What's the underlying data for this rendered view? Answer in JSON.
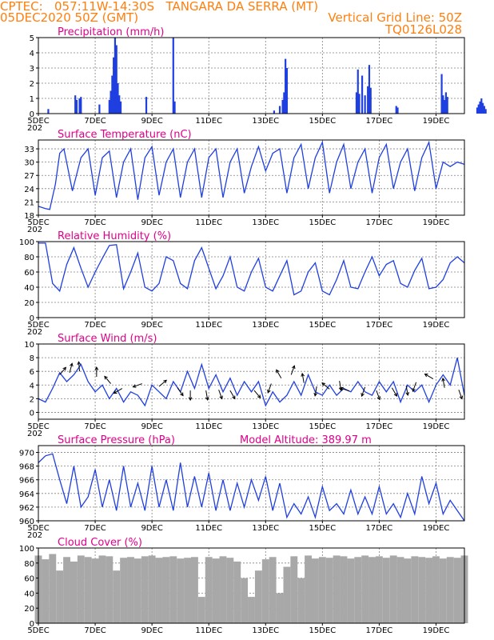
{
  "header": {
    "line1_left": "CPTEC:   057:11W-14:30S   TANGARA DA SERRA (MT)",
    "line2_left": "05DEC2020 50Z (GMT)",
    "line2_right": "Vertical Grid Line: 50Z",
    "line3_right": "TQ0126L028"
  },
  "colors": {
    "header": "#ff7f0e",
    "title": "#e0008a",
    "line": "#1f3fe0",
    "cloud": "#a8a8a8",
    "grid": "#808080"
  },
  "x_ticks": [
    "5DEC",
    "7DEC",
    "9DEC",
    "11DEC",
    "13DEC",
    "15DEC",
    "17DEC",
    "19DEC"
  ],
  "x_tick_days": [
    0,
    2,
    4,
    6,
    8,
    10,
    12,
    14
  ],
  "x_extra_label": "202",
  "chart_data": [
    {
      "type": "bar",
      "title": "Precipitation  (mm/h)",
      "ylim": [
        0,
        5
      ],
      "yticks": [
        0,
        1,
        2,
        3,
        4,
        5
      ],
      "xlim_days": [
        0,
        15
      ],
      "x_days": [
        0.35,
        1.3,
        1.35,
        1.45,
        1.5,
        2.15,
        2.5,
        2.55,
        2.6,
        2.65,
        2.7,
        2.72,
        2.75,
        2.8,
        2.85,
        2.9,
        3.8,
        4.75,
        4.8,
        8.3,
        8.5,
        8.6,
        8.65,
        8.7,
        8.75,
        11.2,
        11.25,
        11.3,
        11.4,
        11.5,
        11.6,
        11.65,
        11.7,
        12.6,
        12.65,
        14.2,
        14.25,
        14.3,
        14.35,
        14.4,
        15.45,
        15.5,
        15.55,
        15.6,
        15.65,
        15.7,
        15.75
      ],
      "values": [
        0.3,
        1.2,
        0.9,
        1.0,
        1.1,
        0.6,
        0.9,
        1.5,
        2.5,
        3.7,
        5.0,
        1.8,
        4.5,
        2.0,
        1.2,
        0.8,
        1.1,
        5.0,
        0.8,
        0.2,
        0.5,
        0.9,
        1.4,
        3.6,
        3.0,
        1.4,
        2.9,
        1.3,
        2.5,
        1.2,
        1.8,
        3.2,
        1.7,
        0.5,
        0.4,
        2.6,
        1.2,
        0.9,
        1.4,
        1.1,
        0.4,
        0.6,
        0.8,
        1.0,
        0.7,
        0.5,
        0.3
      ]
    },
    {
      "type": "line",
      "title": "Surface Temperature (nC)",
      "ylim": [
        18,
        35
      ],
      "yticks": [
        18,
        21,
        24,
        27,
        30,
        33
      ],
      "xlim_days": [
        0,
        15
      ],
      "x_days": [
        0,
        0.25,
        0.4,
        0.6,
        0.75,
        0.9,
        1.2,
        1.5,
        1.75,
        2.0,
        2.25,
        2.5,
        2.75,
        3.0,
        3.25,
        3.5,
        3.75,
        4.0,
        4.25,
        4.5,
        4.75,
        5.0,
        5.25,
        5.5,
        5.75,
        6.0,
        6.25,
        6.5,
        6.75,
        7.0,
        7.25,
        7.5,
        7.75,
        8.0,
        8.25,
        8.5,
        8.75,
        9.0,
        9.25,
        9.5,
        9.75,
        10.0,
        10.25,
        10.5,
        10.75,
        11.0,
        11.25,
        11.5,
        11.75,
        12.0,
        12.25,
        12.5,
        12.75,
        13.0,
        13.25,
        13.5,
        13.75,
        14.0,
        14.25,
        14.5,
        14.75,
        15.0
      ],
      "values": [
        20,
        19.5,
        19.3,
        25,
        32,
        33,
        23.5,
        31,
        33,
        22.5,
        31,
        32.5,
        22,
        30,
        33,
        21.5,
        31,
        33.5,
        22.5,
        30,
        33,
        22,
        30,
        33,
        22,
        31,
        33,
        22,
        30,
        33,
        23,
        29,
        33.5,
        28,
        32,
        33,
        23,
        31,
        34,
        24,
        31,
        34.5,
        23,
        30,
        34,
        24,
        30,
        33,
        23,
        31,
        34,
        24,
        30,
        33,
        23.5,
        31,
        34.5,
        24,
        30,
        29,
        30,
        29.5
      ]
    },
    {
      "type": "line",
      "title": "Relative Humidity (%)",
      "ylim": [
        0,
        100
      ],
      "yticks": [
        0,
        20,
        40,
        60,
        80,
        100
      ],
      "xlim_days": [
        0,
        15
      ],
      "x_days": [
        0,
        0.25,
        0.5,
        0.75,
        1.0,
        1.25,
        1.5,
        1.75,
        2.0,
        2.25,
        2.5,
        2.75,
        3.0,
        3.25,
        3.5,
        3.75,
        4.0,
        4.25,
        4.5,
        4.75,
        5.0,
        5.25,
        5.5,
        5.75,
        6.0,
        6.25,
        6.5,
        6.75,
        7.0,
        7.25,
        7.5,
        7.75,
        8.0,
        8.25,
        8.5,
        8.75,
        9.0,
        9.25,
        9.5,
        9.75,
        10.0,
        10.25,
        10.5,
        10.75,
        11.0,
        11.25,
        11.5,
        11.75,
        12.0,
        12.25,
        12.5,
        12.75,
        13.0,
        13.25,
        13.5,
        13.75,
        14.0,
        14.25,
        14.5,
        14.75,
        15.0
      ],
      "values": [
        98,
        98,
        45,
        35,
        70,
        92,
        65,
        40,
        60,
        78,
        95,
        96,
        38,
        60,
        85,
        40,
        35,
        45,
        80,
        75,
        45,
        38,
        75,
        92,
        65,
        38,
        55,
        80,
        40,
        35,
        60,
        78,
        40,
        35,
        55,
        75,
        30,
        35,
        60,
        72,
        35,
        30,
        50,
        75,
        40,
        38,
        60,
        80,
        55,
        70,
        75,
        45,
        40,
        62,
        78,
        38,
        40,
        50,
        72,
        80,
        72
      ]
    },
    {
      "type": "line",
      "title": "Surface Wind (m/s)",
      "ylim": [
        -1,
        10
      ],
      "yticks": [
        0,
        2,
        4,
        6,
        8,
        10
      ],
      "xlim_days": [
        0,
        15
      ],
      "x_days": [
        0,
        0.25,
        0.5,
        0.75,
        1.0,
        1.25,
        1.5,
        1.75,
        2.0,
        2.25,
        2.5,
        2.75,
        3.0,
        3.25,
        3.5,
        3.75,
        4.0,
        4.25,
        4.5,
        4.75,
        5.0,
        5.25,
        5.5,
        5.75,
        6.0,
        6.25,
        6.5,
        6.75,
        7.0,
        7.25,
        7.5,
        7.75,
        8.0,
        8.25,
        8.5,
        8.75,
        9.0,
        9.25,
        9.5,
        9.75,
        10.0,
        10.25,
        10.5,
        10.75,
        11.0,
        11.25,
        11.5,
        11.75,
        12.0,
        12.25,
        12.5,
        12.75,
        13.0,
        13.25,
        13.5,
        13.75,
        14.0,
        14.25,
        14.5,
        14.75,
        15.0
      ],
      "values": [
        2,
        1.5,
        3.5,
        5.8,
        4.5,
        5.5,
        7.0,
        4.5,
        3.0,
        4.0,
        2.0,
        3.5,
        1.5,
        3.0,
        2.5,
        1.0,
        4.0,
        3.0,
        2.0,
        4.5,
        3.0,
        6.0,
        3.5,
        7.0,
        3.5,
        5.5,
        3.0,
        5.0,
        2.5,
        4.5,
        3.0,
        4.5,
        1.0,
        3.0,
        1.5,
        2.5,
        4.5,
        2.5,
        5.5,
        3.0,
        2.5,
        4.0,
        2.5,
        3.5,
        3.0,
        4.5,
        3.0,
        2.5,
        4.5,
        3.0,
        4.5,
        1.5,
        4.0,
        3.0,
        4.0,
        1.5,
        4.0,
        5.5,
        4.0,
        8.0,
        2.5
      ],
      "arrows_days": [
        0.75,
        1.1,
        1.45,
        2.05,
        2.55,
        2.95,
        3.65,
        4.25,
        4.9,
        5.35,
        5.9,
        6.35,
        6.75,
        7.6,
        8.2,
        8.55,
        8.9,
        9.35,
        9.8,
        10.25,
        10.6,
        10.95,
        11.5,
        11.9,
        12.45,
        12.95,
        13.3,
        13.9,
        14.3,
        14.8
      ],
      "arrows_speed": [
        5.5,
        5.8,
        6.0,
        5.2,
        4.2,
        3.5,
        4.2,
        3.8,
        3.6,
        3.2,
        3.2,
        3.3,
        3.2,
        3.2,
        4.2,
        5.0,
        5.5,
        4.3,
        3.8,
        3.4,
        4.6,
        3.1,
        3.7,
        3.2,
        3.6,
        3.9,
        4.4,
        4.9,
        3.6,
        3.3
      ],
      "arrows_dir_deg": [
        50,
        75,
        95,
        90,
        130,
        210,
        200,
        40,
        305,
        270,
        280,
        290,
        300,
        310,
        250,
        120,
        70,
        100,
        260,
        140,
        280,
        160,
        250,
        290,
        300,
        280,
        250,
        150,
        100,
        290
      ]
    },
    {
      "type": "line",
      "title": "Surface Pressure (hPa)",
      "annotation": "Model Altitude: 389.97  m",
      "ylim": [
        960,
        971
      ],
      "yticks": [
        960,
        962,
        964,
        966,
        968,
        970
      ],
      "xlim_days": [
        0,
        15
      ],
      "x_days": [
        0,
        0.25,
        0.5,
        0.75,
        1.0,
        1.25,
        1.5,
        1.75,
        2.0,
        2.25,
        2.5,
        2.75,
        3.0,
        3.25,
        3.5,
        3.75,
        4.0,
        4.25,
        4.5,
        4.75,
        5.0,
        5.25,
        5.5,
        5.75,
        6.0,
        6.25,
        6.5,
        6.75,
        7.0,
        7.25,
        7.5,
        7.75,
        8.0,
        8.25,
        8.5,
        8.75,
        9.0,
        9.25,
        9.5,
        9.75,
        10.0,
        10.25,
        10.5,
        10.75,
        11.0,
        11.25,
        11.5,
        11.75,
        12.0,
        12.25,
        12.5,
        12.75,
        13.0,
        13.25,
        13.5,
        13.75,
        14.0,
        14.25,
        14.5,
        14.75,
        15.0
      ],
      "values": [
        968.5,
        969.5,
        969.8,
        966,
        962.5,
        968,
        962,
        963.5,
        967.5,
        962,
        966,
        961.5,
        968,
        962,
        965.5,
        961.5,
        968,
        962,
        966,
        961.5,
        968.5,
        962,
        966.5,
        962,
        967,
        961.5,
        966,
        961.5,
        965.5,
        962,
        966,
        963,
        966.5,
        961.5,
        965.5,
        960.5,
        962.5,
        961,
        963.5,
        960.5,
        965,
        961.5,
        962.5,
        961,
        964.5,
        961,
        963.5,
        961,
        965,
        961,
        962.5,
        960.5,
        964,
        961,
        966.5,
        962.5,
        965.5,
        961,
        963,
        961.5,
        960
      ]
    },
    {
      "type": "area",
      "title": "Cloud Cover (%)",
      "ylim": [
        0,
        100
      ],
      "yticks": [
        0,
        20,
        40,
        60,
        80,
        100
      ],
      "xlim_days": [
        0,
        15
      ],
      "x_days": [
        0,
        0.25,
        0.5,
        0.75,
        1.0,
        1.25,
        1.5,
        1.75,
        2.0,
        2.25,
        2.5,
        2.75,
        3.0,
        3.25,
        3.5,
        3.75,
        4.0,
        4.25,
        4.5,
        4.75,
        5.0,
        5.25,
        5.5,
        5.75,
        6.0,
        6.25,
        6.5,
        6.75,
        7.0,
        7.25,
        7.5,
        7.75,
        8.0,
        8.25,
        8.5,
        8.75,
        9.0,
        9.25,
        9.5,
        9.75,
        10.0,
        10.25,
        10.5,
        10.75,
        11.0,
        11.25,
        11.5,
        11.75,
        12.0,
        12.25,
        12.5,
        12.75,
        13.0,
        13.25,
        13.5,
        13.75,
        14.0,
        14.25,
        14.5,
        14.75,
        15.0
      ],
      "values": [
        90,
        85,
        92,
        70,
        88,
        82,
        90,
        88,
        86,
        90,
        89,
        70,
        87,
        88,
        86,
        89,
        90,
        87,
        88,
        89,
        86,
        87,
        88,
        35,
        88,
        86,
        89,
        87,
        82,
        60,
        35,
        70,
        85,
        88,
        40,
        75,
        89,
        60,
        90,
        86,
        88,
        87,
        90,
        89,
        86,
        88,
        90,
        88,
        89,
        87,
        90,
        88,
        86,
        89,
        88,
        87,
        89,
        86,
        88,
        87,
        90
      ]
    }
  ]
}
